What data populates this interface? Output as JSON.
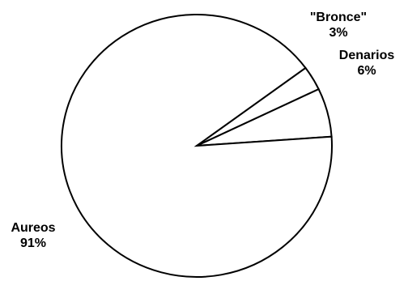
{
  "chart_data": {
    "type": "pie",
    "slices": [
      {
        "label": "Aureos",
        "value": 91,
        "display": "91%"
      },
      {
        "label": "Denarios",
        "value": 6,
        "display": "6%"
      },
      {
        "label": "\"Bronce\"",
        "value": 3,
        "display": "3%"
      }
    ]
  },
  "colors": {
    "fill": "#ffffff",
    "stroke": "#000000"
  }
}
